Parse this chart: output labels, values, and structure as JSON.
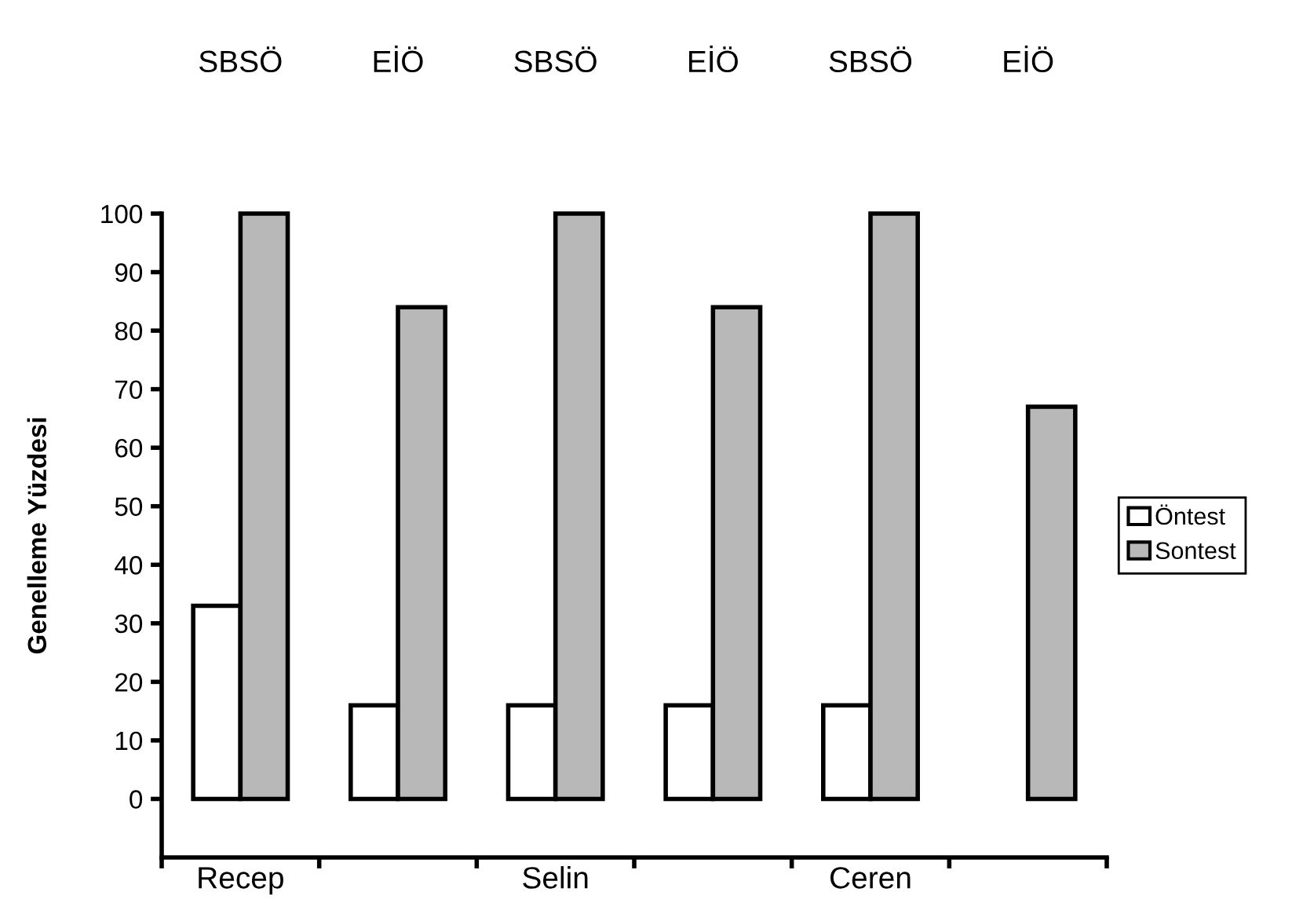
{
  "chart_data": {
    "type": "bar",
    "ylabel": "Genelleme Yüzdesi",
    "categories": [
      "SBSÖ",
      "EİÖ",
      "SBSÖ",
      "EİÖ",
      "SBSÖ",
      "EİÖ"
    ],
    "series": [
      {
        "name": "Öntest",
        "color": "#ffffff",
        "values": [
          33,
          16,
          16,
          16,
          16,
          0
        ]
      },
      {
        "name": "Sontest",
        "color": "#b8b8b8",
        "values": [
          100,
          84,
          100,
          84,
          100,
          67
        ]
      }
    ],
    "ylim": [
      -10,
      100
    ],
    "yticks": [
      0,
      10,
      20,
      30,
      40,
      50,
      60,
      70,
      80,
      90,
      100
    ],
    "annotations": [
      "Recep",
      "Selin",
      "Ceren"
    ],
    "grid": false,
    "legend": "right"
  }
}
